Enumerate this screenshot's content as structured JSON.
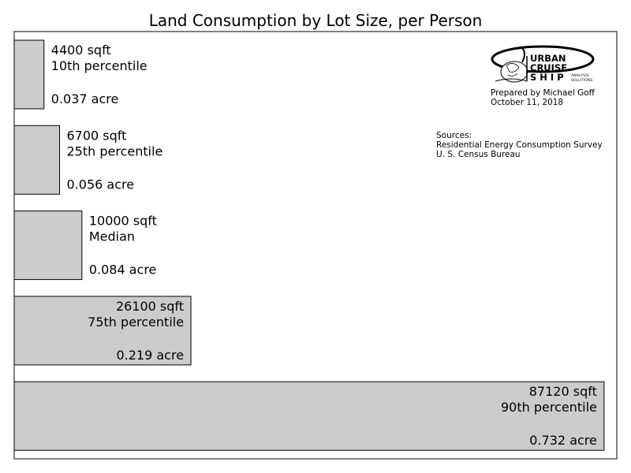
{
  "chart_data": {
    "type": "bar",
    "orientation": "horizontal",
    "title": "Land Consumption by Lot Size, per Person",
    "xlabel": "",
    "ylabel": "",
    "xlim": [
      0,
      89000
    ],
    "grid": false,
    "bar_color": "#cccccc",
    "edge_color": "#000000",
    "categories": [
      "10th percentile",
      "25th percentile",
      "Median",
      "75th percentile",
      "90th percentile"
    ],
    "values": [
      4400,
      6700,
      10000,
      26100,
      87120
    ],
    "value_labels": [
      "4400 sqft",
      "6700 sqft",
      "10000 sqft",
      "26100 sqft",
      "87120 sqft"
    ],
    "acre_labels": [
      "0.037 acre",
      "0.056 acre",
      "0.084 acre",
      "0.219 acre",
      "0.732 acre"
    ]
  },
  "annotations": {
    "credit_line1": "Prepared by Michael Goff",
    "credit_line2": "October 11, 2018",
    "sources_heading": "Sources:",
    "sources_line1": "Residential Energy Consumption Survey",
    "sources_line2": "U. S. Census Bureau"
  },
  "logo": {
    "word1": "URBAN",
    "word2": "CRUISE",
    "word3": "S H I P",
    "tag1": "ANALYSIS",
    "tag2": "SOLUTIONS"
  }
}
